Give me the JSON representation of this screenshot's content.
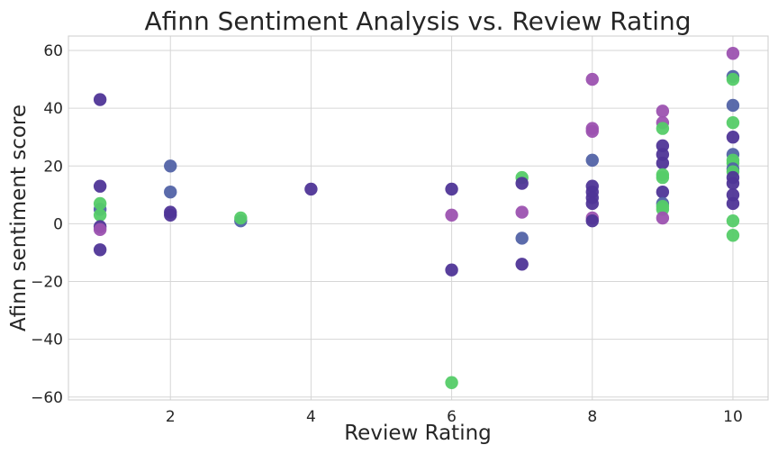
{
  "chart_data": {
    "type": "scatter",
    "title": "Afinn Sentiment Analysis vs. Review Rating",
    "xlabel": "Review Rating",
    "ylabel": "Afinn sentiment score",
    "xlim": [
      0.55,
      10.5
    ],
    "ylim": [
      -61,
      65
    ],
    "xticks": [
      2,
      4,
      6,
      8,
      10
    ],
    "yticks": [
      -60,
      -40,
      -20,
      0,
      20,
      40,
      60
    ],
    "ytick_labels": [
      "−60",
      "−40",
      "−20",
      "0",
      "20",
      "40",
      "60"
    ],
    "grid": true,
    "colors": [
      "#4f3597",
      "#5263a6",
      "#9c52b0",
      "#55cc68"
    ],
    "points": [
      {
        "x": 1,
        "y": 43,
        "c": 0
      },
      {
        "x": 1,
        "y": 13,
        "c": 0
      },
      {
        "x": 1,
        "y": 5,
        "c": 1
      },
      {
        "x": 1,
        "y": 7,
        "c": 3
      },
      {
        "x": 1,
        "y": 3,
        "c": 3
      },
      {
        "x": 1,
        "y": -1,
        "c": 0
      },
      {
        "x": 1,
        "y": -2,
        "c": 2
      },
      {
        "x": 1,
        "y": -9,
        "c": 0
      },
      {
        "x": 2,
        "y": 20,
        "c": 1
      },
      {
        "x": 2,
        "y": 11,
        "c": 1
      },
      {
        "x": 2,
        "y": 4,
        "c": 0
      },
      {
        "x": 2,
        "y": 3,
        "c": 0
      },
      {
        "x": 3,
        "y": 1,
        "c": 1
      },
      {
        "x": 3,
        "y": 2,
        "c": 3
      },
      {
        "x": 4,
        "y": 12,
        "c": 0
      },
      {
        "x": 6,
        "y": 12,
        "c": 0
      },
      {
        "x": 6,
        "y": 3,
        "c": 2
      },
      {
        "x": 6,
        "y": -16,
        "c": 0
      },
      {
        "x": 6,
        "y": -55,
        "c": 3
      },
      {
        "x": 7,
        "y": 16,
        "c": 3
      },
      {
        "x": 7,
        "y": 14,
        "c": 0
      },
      {
        "x": 7,
        "y": 4,
        "c": 2
      },
      {
        "x": 7,
        "y": -5,
        "c": 1
      },
      {
        "x": 7,
        "y": -14,
        "c": 0
      },
      {
        "x": 8,
        "y": 50,
        "c": 2
      },
      {
        "x": 8,
        "y": 33,
        "c": 2
      },
      {
        "x": 8,
        "y": 32,
        "c": 2
      },
      {
        "x": 8,
        "y": 22,
        "c": 1
      },
      {
        "x": 8,
        "y": 13,
        "c": 0
      },
      {
        "x": 8,
        "y": 11,
        "c": 0
      },
      {
        "x": 8,
        "y": 9,
        "c": 0
      },
      {
        "x": 8,
        "y": 7,
        "c": 0
      },
      {
        "x": 8,
        "y": 2,
        "c": 2
      },
      {
        "x": 8,
        "y": 1,
        "c": 0
      },
      {
        "x": 9,
        "y": 39,
        "c": 2
      },
      {
        "x": 9,
        "y": 35,
        "c": 2
      },
      {
        "x": 9,
        "y": 33,
        "c": 3
      },
      {
        "x": 9,
        "y": 27,
        "c": 0
      },
      {
        "x": 9,
        "y": 24,
        "c": 0
      },
      {
        "x": 9,
        "y": 21,
        "c": 0
      },
      {
        "x": 9,
        "y": 17,
        "c": 3
      },
      {
        "x": 9,
        "y": 16,
        "c": 3
      },
      {
        "x": 9,
        "y": 11,
        "c": 0
      },
      {
        "x": 9,
        "y": 7,
        "c": 1
      },
      {
        "x": 9,
        "y": 6,
        "c": 3
      },
      {
        "x": 9,
        "y": 5,
        "c": 3
      },
      {
        "x": 9,
        "y": 2,
        "c": 2
      },
      {
        "x": 10,
        "y": 59,
        "c": 2
      },
      {
        "x": 10,
        "y": 51,
        "c": 1
      },
      {
        "x": 10,
        "y": 50,
        "c": 3
      },
      {
        "x": 10,
        "y": 41,
        "c": 1
      },
      {
        "x": 10,
        "y": 35,
        "c": 3
      },
      {
        "x": 10,
        "y": 30,
        "c": 0
      },
      {
        "x": 10,
        "y": 24,
        "c": 1
      },
      {
        "x": 10,
        "y": 22,
        "c": 3
      },
      {
        "x": 10,
        "y": 21,
        "c": 3
      },
      {
        "x": 10,
        "y": 19,
        "c": 1
      },
      {
        "x": 10,
        "y": 18,
        "c": 3
      },
      {
        "x": 10,
        "y": 16,
        "c": 0
      },
      {
        "x": 10,
        "y": 14,
        "c": 0
      },
      {
        "x": 10,
        "y": 10,
        "c": 0
      },
      {
        "x": 10,
        "y": 7,
        "c": 0
      },
      {
        "x": 10,
        "y": 1,
        "c": 3
      },
      {
        "x": 10,
        "y": -4,
        "c": 3
      }
    ]
  }
}
